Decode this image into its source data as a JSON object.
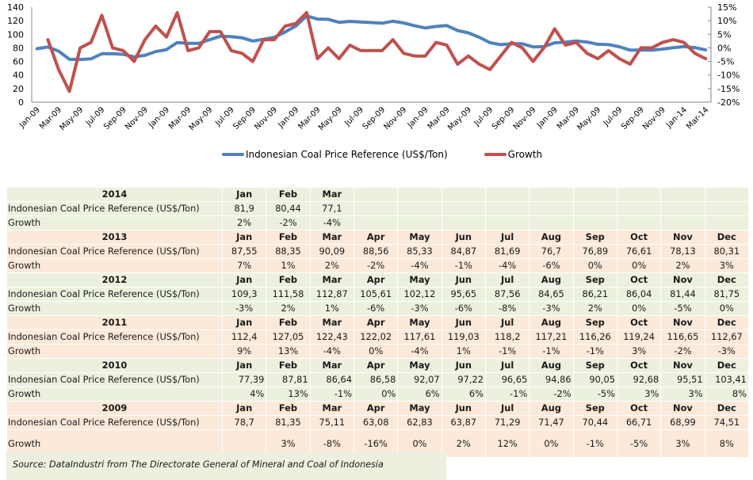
{
  "chart_data": {
    "type": "line",
    "title": "",
    "x_tick_labels": [
      "Jan-09",
      "Mar-09",
      "May-09",
      "Jul-09",
      "Sep-09",
      "Nov-09",
      "Jan-09",
      "Mar-09",
      "May-09",
      "Jul-09",
      "Sep-09",
      "Nov-09",
      "Jan-09",
      "Mar-09",
      "May-09",
      "Jul-09",
      "Sep-09",
      "Nov-09",
      "Jan-09",
      "Mar-09",
      "May-09",
      "Jul-09",
      "Sep-09",
      "Nov-09",
      "Jan-09",
      "Mar-09",
      "May-09",
      "Jul-09",
      "Sep-09",
      "Nov-09",
      "Jan-14",
      "Mar-14"
    ],
    "y_left": {
      "ticks": [
        "0",
        "20",
        "40",
        "60",
        "80",
        "100",
        "120",
        "140"
      ],
      "range": [
        0,
        140
      ]
    },
    "y_right": {
      "ticks": [
        "-20%",
        "-15%",
        "-10%",
        "-5%",
        "0%",
        "5%",
        "10%",
        "15%"
      ],
      "range": [
        -20,
        15
      ]
    },
    "series": [
      {
        "name": "Indonesian Coal Price Reference (US$/Ton)",
        "axis": "left",
        "color": "#4f81bd",
        "values": [
          78.7,
          81.35,
          75.11,
          63.08,
          62.83,
          63.87,
          71.29,
          71.47,
          70.44,
          66.71,
          68.99,
          74.51,
          77.39,
          87.81,
          86.64,
          86.58,
          92.07,
          97.22,
          96.65,
          94.86,
          90.05,
          92.68,
          95.51,
          103.41,
          112.4,
          127.05,
          122.43,
          122.02,
          117.61,
          119.03,
          118.2,
          117.21,
          116.26,
          119.24,
          116.65,
          112.67,
          109.3,
          111.58,
          112.87,
          105.61,
          102.12,
          95.65,
          87.56,
          84.65,
          86.21,
          86.04,
          81.44,
          81.75,
          87.55,
          88.35,
          90.09,
          88.56,
          85.33,
          84.87,
          81.69,
          76.7,
          76.89,
          76.61,
          78.13,
          80.31,
          81.9,
          80.44,
          77.1
        ]
      },
      {
        "name": "Growth",
        "axis": "right",
        "color": "#c0504d",
        "values": [
          null,
          3,
          -8,
          -16,
          0,
          2,
          12,
          0,
          -1,
          -5,
          3,
          8,
          4,
          13,
          -1,
          0,
          6,
          6,
          -1,
          -2,
          -5,
          3,
          3,
          8,
          9,
          13,
          -4,
          0,
          -4,
          1,
          -1,
          -1,
          -1,
          3,
          -2,
          -3,
          -3,
          2,
          1,
          -6,
          -3,
          -6,
          -8,
          -3,
          2,
          0,
          -5,
          0,
          7,
          1,
          2,
          -2,
          -4,
          -1,
          -4,
          -6,
          0,
          0,
          2,
          3,
          2,
          -2,
          -4
        ]
      }
    ],
    "legend": "bottom"
  },
  "legend": {
    "price_label": "Indonesian Coal Price Reference (US$/Ton)",
    "growth_label": "Growth"
  },
  "table": {
    "price_label": "Indonesian Coal Price Reference (US$/Ton)",
    "growth_label": "Growth",
    "years": [
      {
        "year": "2014",
        "months": [
          "Jan",
          "Feb",
          "Mar",
          "",
          "",
          "",
          "",
          "",
          "",
          "",
          "",
          ""
        ],
        "prices": [
          "81,9",
          "80,44",
          "77,1",
          "",
          "",
          "",
          "",
          "",
          "",
          "",
          "",
          ""
        ],
        "growth": [
          "2%",
          "-2%",
          "-4%",
          "",
          "",
          "",
          "",
          "",
          "",
          "",
          "",
          ""
        ]
      },
      {
        "year": "2013",
        "months": [
          "Jan",
          "Feb",
          "Mar",
          "Apr",
          "May",
          "Jun",
          "Jul",
          "Aug",
          "Sep",
          "Oct",
          "Nov",
          "Dec"
        ],
        "prices": [
          "87,55",
          "88,35",
          "90,09",
          "88,56",
          "85,33",
          "84,87",
          "81,69",
          "76,7",
          "76,89",
          "76,61",
          "78,13",
          "80,31"
        ],
        "growth": [
          "7%",
          "1%",
          "2%",
          "-2%",
          "-4%",
          "-1%",
          "-4%",
          "-6%",
          "0%",
          "0%",
          "2%",
          "3%"
        ]
      },
      {
        "year": "2012",
        "months": [
          "Jan",
          "Feb",
          "Mar",
          "Apr",
          "May",
          "Jun",
          "Jul",
          "Aug",
          "Sep",
          "Oct",
          "Nov",
          "Dec"
        ],
        "prices": [
          "109,3",
          "111,58",
          "112,87",
          "105,61",
          "102,12",
          "95,65",
          "87,56",
          "84,65",
          "86,21",
          "86,04",
          "81,44",
          "81,75"
        ],
        "growth": [
          "-3%",
          "2%",
          "1%",
          "-6%",
          "-3%",
          "-6%",
          "-8%",
          "-3%",
          "2%",
          "0%",
          "-5%",
          "0%"
        ]
      },
      {
        "year": "2011",
        "months": [
          "Jan",
          "Feb",
          "Mar",
          "Apr",
          "May",
          "Jun",
          "Jul",
          "Aug",
          "Sep",
          "Oct",
          "Nov",
          "Dec"
        ],
        "prices": [
          "112,4",
          "127,05",
          "122,43",
          "122,02",
          "117,61",
          "119,03",
          "118,2",
          "117,21",
          "116,26",
          "119,24",
          "116,65",
          "112,67"
        ],
        "growth": [
          "9%",
          "13%",
          "-4%",
          "0%",
          "-4%",
          "1%",
          "-1%",
          "-1%",
          "-1%",
          "3%",
          "-2%",
          "-3%"
        ]
      },
      {
        "year": "2010",
        "months": [
          "Jan",
          "Feb",
          "Mar",
          "Apr",
          "May",
          "Jun",
          "Jul",
          "Aug",
          "Sep",
          "Oct",
          "Nov",
          "Dec"
        ],
        "prices": [
          "77,39",
          "87,81",
          "86,64",
          "86,58",
          "92,07",
          "97,22",
          "96,65",
          "94,86",
          "90,05",
          "92,68",
          "95,51",
          "103,41"
        ],
        "growth": [
          "4%",
          "13%",
          "-1%",
          "0%",
          "6%",
          "6%",
          "-1%",
          "-2%",
          "-5%",
          "3%",
          "3%",
          "8%"
        ]
      },
      {
        "year": "2009",
        "months": [
          "Jan",
          "Feb",
          "Mar",
          "Apr",
          "May",
          "Jun",
          "Jul",
          "Aug",
          "Sep",
          "Oct",
          "Nov",
          "Dec"
        ],
        "prices": [
          "78,7",
          "81,35",
          "75,11",
          "63,08",
          "62,83",
          "63,87",
          "71,29",
          "71,47",
          "70,44",
          "66,71",
          "68,99",
          "74,51"
        ],
        "growth": [
          "",
          "3%",
          "-8%",
          "-16%",
          "0%",
          "2%",
          "12%",
          "0%",
          "-1%",
          "-5%",
          "3%",
          "8%"
        ]
      }
    ]
  },
  "source": "Source: DataIndustri from The Directorate General of Mineral and Coal of Indonesia"
}
